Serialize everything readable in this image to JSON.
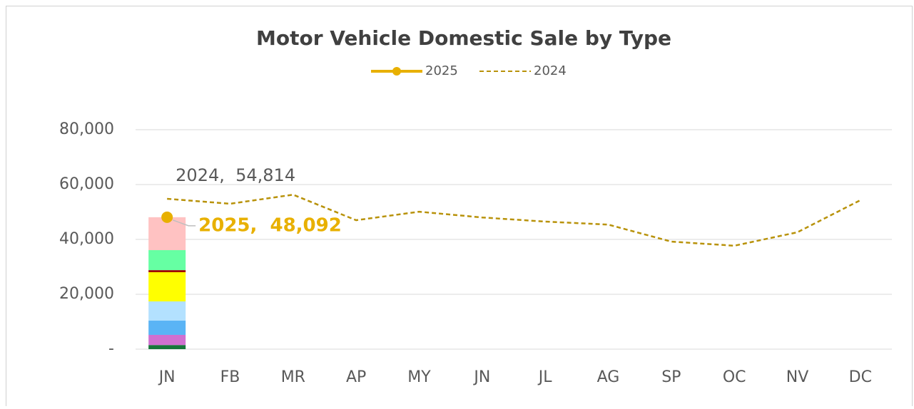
{
  "chart_data": {
    "type": "bar_line",
    "title": "Motor Vehicle Domestic Sale by Type",
    "categories": [
      "JN",
      "FB",
      "MR",
      "AP",
      "MY",
      "JN",
      "JL",
      "AG",
      "SP",
      "OC",
      "NV",
      "DC"
    ],
    "ylim": [
      0,
      80000
    ],
    "yticks": [
      {
        "value": 0,
        "label": "-"
      },
      {
        "value": 20000,
        "label": "20,000"
      },
      {
        "value": 40000,
        "label": "40,000"
      },
      {
        "value": 60000,
        "label": "60,000"
      },
      {
        "value": 80000,
        "label": "80,000"
      }
    ],
    "grid": true,
    "legend": "top",
    "stack": [
      {
        "color": "#17763a",
        "values": [
          1500,
          null,
          null,
          null,
          null,
          null,
          null,
          null,
          null,
          null,
          null,
          null
        ]
      },
      {
        "color": "#d070d0",
        "values": [
          3700,
          null,
          null,
          null,
          null,
          null,
          null,
          null,
          null,
          null,
          null,
          null
        ]
      },
      {
        "color": "#5ab4f5",
        "values": [
          5200,
          null,
          null,
          null,
          null,
          null,
          null,
          null,
          null,
          null,
          null,
          null
        ]
      },
      {
        "color": "#b3e1ff",
        "values": [
          7000,
          null,
          null,
          null,
          null,
          null,
          null,
          null,
          null,
          null,
          null,
          null
        ]
      },
      {
        "color": "#ffff00",
        "values": [
          10650,
          null,
          null,
          null,
          null,
          null,
          null,
          null,
          null,
          null,
          null,
          null
        ]
      },
      {
        "color": "#a00000",
        "values": [
          750,
          null,
          null,
          null,
          null,
          null,
          null,
          null,
          null,
          null,
          null,
          null
        ]
      },
      {
        "color": "#66ffa3",
        "values": [
          7300,
          null,
          null,
          null,
          null,
          null,
          null,
          null,
          null,
          null,
          null,
          null
        ]
      },
      {
        "color": "#ffc2c2",
        "values": [
          11992,
          null,
          null,
          null,
          null,
          null,
          null,
          null,
          null,
          null,
          null,
          null
        ]
      }
    ],
    "series": [
      {
        "name": "2025",
        "color": "#e8b000",
        "dashed": false,
        "marker": true,
        "values": [
          48092,
          null,
          null,
          null,
          null,
          null,
          null,
          null,
          null,
          null,
          null,
          null
        ],
        "value_labels": [
          "2025,  48,092",
          null,
          null,
          null,
          null,
          null,
          null,
          null,
          null,
          null,
          null,
          null
        ]
      },
      {
        "name": "2024",
        "color": "#b8920a",
        "dashed": true,
        "marker": false,
        "values": [
          54814,
          53000,
          56300,
          47000,
          50100,
          48000,
          46500,
          45400,
          39200,
          37700,
          42600,
          54300
        ],
        "value_labels": [
          "2024,  54,814",
          null,
          null,
          null,
          null,
          null,
          null,
          null,
          null,
          null,
          null,
          null
        ]
      }
    ]
  }
}
